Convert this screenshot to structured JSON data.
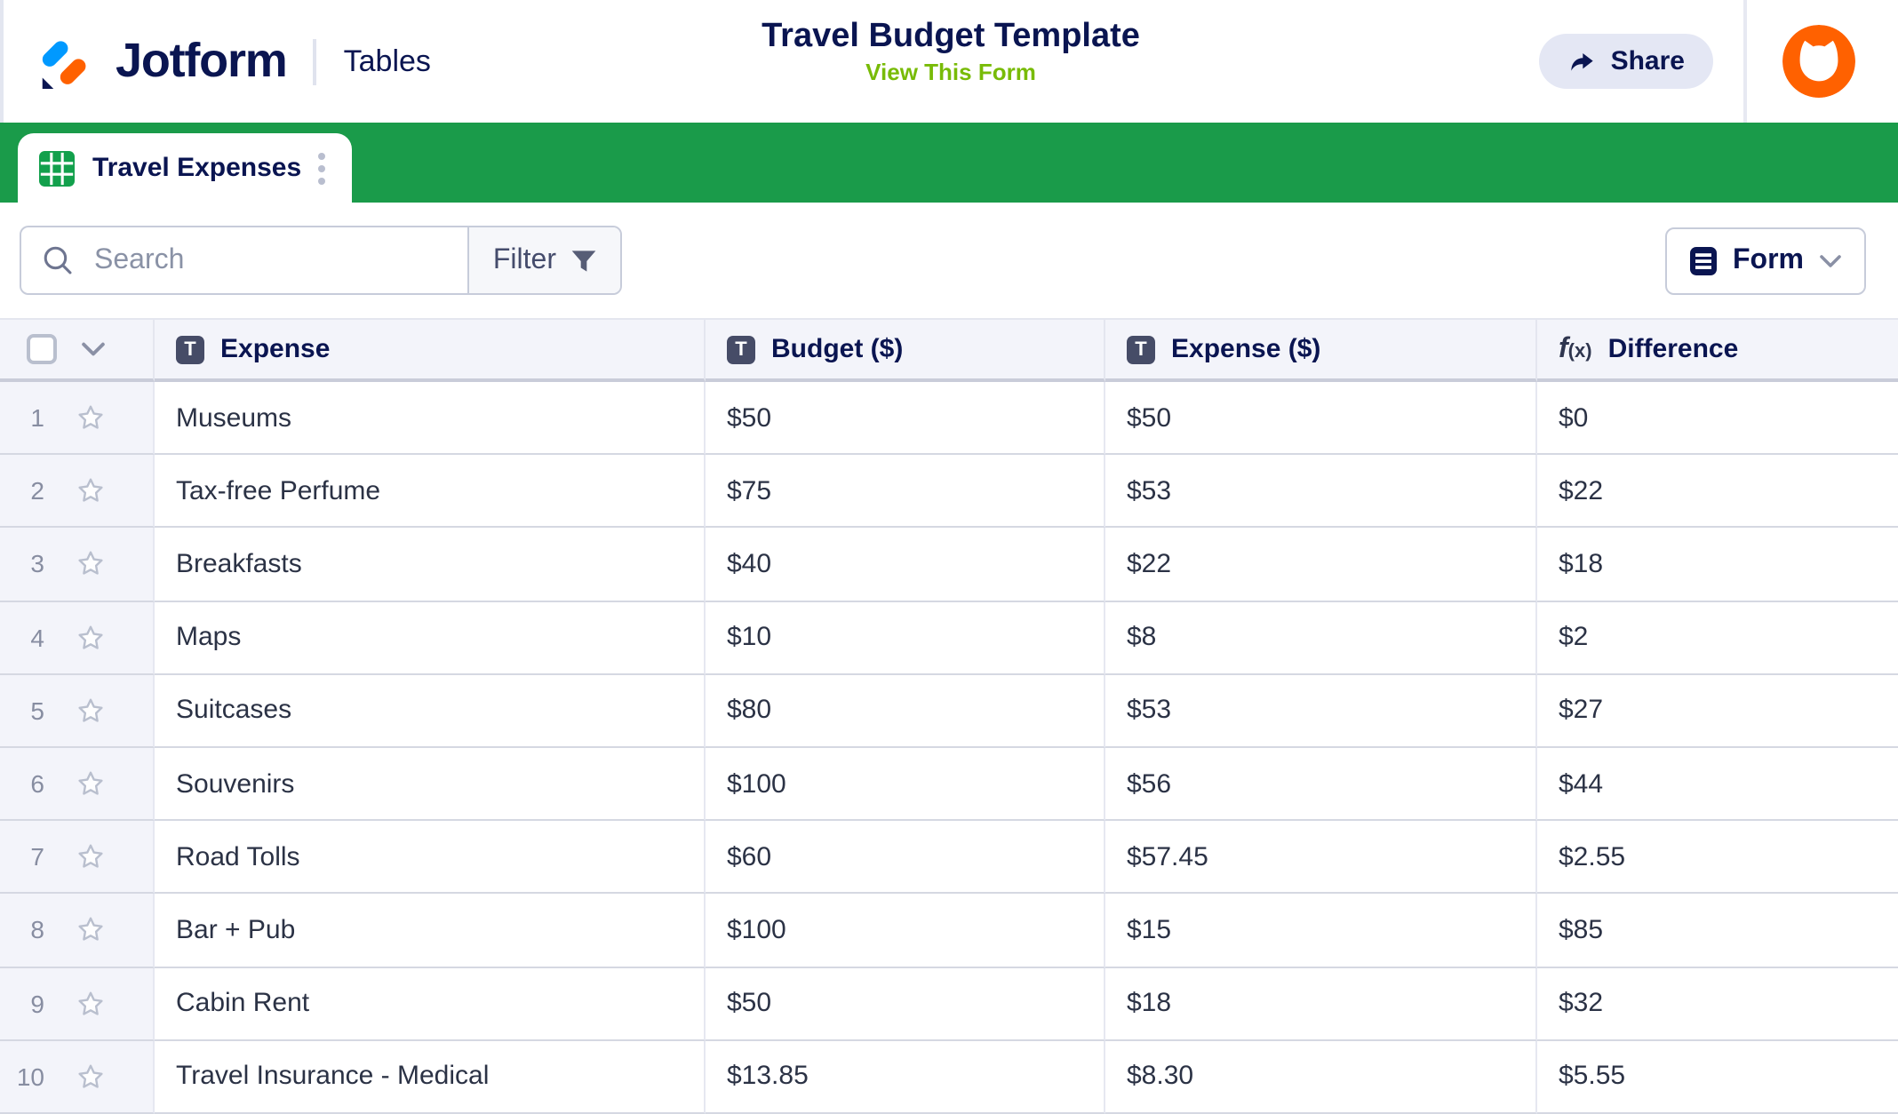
{
  "header": {
    "brand": "Jotform",
    "product": "Tables",
    "title": "Travel Budget Template",
    "view_form": "View This Form",
    "share": "Share"
  },
  "tab": {
    "label": "Travel Expenses"
  },
  "toolbar": {
    "search_placeholder": "Search",
    "filter": "Filter",
    "form": "Form"
  },
  "table": {
    "columns": [
      {
        "key": "expense",
        "label": "Expense",
        "icon": "text-column-icon",
        "glyph": "T"
      },
      {
        "key": "budget",
        "label": "Budget ($)",
        "icon": "text-column-icon",
        "glyph": "T"
      },
      {
        "key": "spent",
        "label": "Expense ($)",
        "icon": "text-column-icon",
        "glyph": "T"
      },
      {
        "key": "difference",
        "label": "Difference",
        "icon": "formula-column-icon",
        "glyph": "f(x)"
      }
    ],
    "rows": [
      {
        "num": "1",
        "expense": "Museums",
        "budget": "$50",
        "spent": "$50",
        "difference": "$0"
      },
      {
        "num": "2",
        "expense": "Tax-free Perfume",
        "budget": "$75",
        "spent": "$53",
        "difference": "$22"
      },
      {
        "num": "3",
        "expense": "Breakfasts",
        "budget": "$40",
        "spent": "$22",
        "difference": "$18"
      },
      {
        "num": "4",
        "expense": "Maps",
        "budget": "$10",
        "spent": "$8",
        "difference": "$2"
      },
      {
        "num": "5",
        "expense": "Suitcases",
        "budget": "$80",
        "spent": "$53",
        "difference": "$27"
      },
      {
        "num": "6",
        "expense": "Souvenirs",
        "budget": "$100",
        "spent": "$56",
        "difference": "$44"
      },
      {
        "num": "7",
        "expense": "Road Tolls",
        "budget": "$60",
        "spent": "$57.45",
        "difference": "$2.55"
      },
      {
        "num": "8",
        "expense": "Bar + Pub",
        "budget": "$100",
        "spent": "$15",
        "difference": "$85"
      },
      {
        "num": "9",
        "expense": "Cabin Rent",
        "budget": "$50",
        "spent": "$18",
        "difference": "$32"
      },
      {
        "num": "10",
        "expense": "Travel Insurance - Medical",
        "budget": "$13.85",
        "spent": "$8.30",
        "difference": "$5.55"
      }
    ]
  },
  "colors": {
    "brand_navy": "#0A1551",
    "green_bar": "#1A9B4A",
    "lime_link": "#78BB07",
    "orange": "#FF6100",
    "blue": "#0099FF"
  }
}
